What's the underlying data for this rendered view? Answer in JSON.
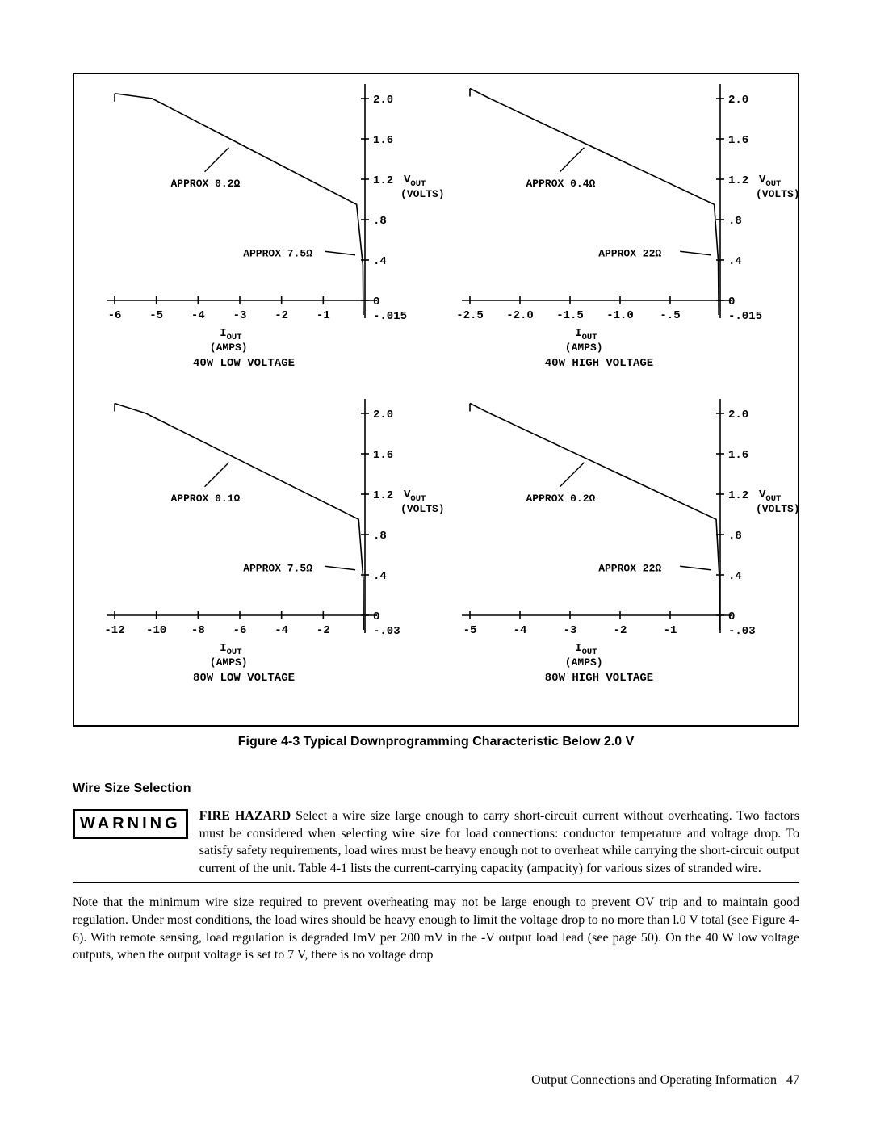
{
  "figure": {
    "caption": "Figure 4-3  Typical Downprogramming Characteristic Below 2.0 V",
    "border_color": "#000000",
    "background": "#ffffff",
    "font_family_plot": "Courier New",
    "font_family_text": "Times New Roman",
    "charts": [
      {
        "id": "c40lv",
        "title": "40W LOW VOLTAGE",
        "x_ticks": [
          "-6",
          "-5",
          "-4",
          "-3",
          "-2",
          "-1"
        ],
        "x_min": -6,
        "x_max": 0,
        "y_ticks": [
          "0",
          ".4",
          ".8",
          "1.2",
          "1.6",
          "2.0"
        ],
        "y_min": -0.015,
        "y_neg_label": "-.015",
        "y_max": 2.0,
        "y_axis_label": "V_OUT",
        "y_axis_unit": "(VOLTS)",
        "x_axis_label": "I_OUT",
        "x_axis_unit": "(AMPS)",
        "annot_upper": "APPROX 0.2",
        "annot_upper_unit": "ohm",
        "annot_lower": "APPROX 7.5",
        "annot_lower_unit": "ohm",
        "curve": [
          [
            -6,
            2.05
          ],
          [
            -5.1,
            2.0
          ],
          [
            -0.2,
            0.95
          ],
          [
            -0.05,
            0.35
          ],
          [
            -0.04,
            -0.015
          ]
        ],
        "line_width": 1.6,
        "color": "#000000"
      },
      {
        "id": "c40hv",
        "title": "40W HIGH VOLTAGE",
        "x_ticks": [
          "-2.5",
          "-2.0",
          "-1.5",
          "-1.0",
          "-.5"
        ],
        "x_min": -2.5,
        "x_max": 0,
        "y_ticks": [
          "0",
          ".4",
          ".8",
          "1.2",
          "1.6",
          "2.0"
        ],
        "y_min": -0.015,
        "y_neg_label": "-.015",
        "y_max": 2.0,
        "y_axis_label": "V_OUT",
        "y_axis_unit": "(VOLTS)",
        "x_axis_label": "I_OUT",
        "x_axis_unit": "(AMPS)",
        "annot_upper": "APPROX 0.4",
        "annot_upper_unit": "ohm",
        "annot_lower": "APPROX 22",
        "annot_lower_unit": "ohm",
        "curve": [
          [
            -2.5,
            2.1
          ],
          [
            -2.3,
            2.0
          ],
          [
            -0.06,
            0.95
          ],
          [
            -0.02,
            0.4
          ],
          [
            -0.015,
            -0.015
          ]
        ],
        "line_width": 1.6,
        "color": "#000000"
      },
      {
        "id": "c80lv",
        "title": "80W LOW VOLTAGE",
        "x_ticks": [
          "-12",
          "-10",
          "-8",
          "-6",
          "-4",
          "-2"
        ],
        "x_min": -12,
        "x_max": 0,
        "y_ticks": [
          "0",
          ".4",
          ".8",
          "1.2",
          "1.6",
          "2.0"
        ],
        "y_min": -0.03,
        "y_neg_label": "-.03",
        "y_max": 2.0,
        "y_axis_label": "V_OUT",
        "y_axis_unit": "(VOLTS)",
        "x_axis_label": "I_OUT",
        "x_axis_unit": "(AMPS)",
        "annot_upper": "APPROX 0.1",
        "annot_upper_unit": "ohm",
        "annot_lower": "APPROX 7.5",
        "annot_lower_unit": "ohm",
        "curve": [
          [
            -12,
            2.1
          ],
          [
            -10.5,
            2.0
          ],
          [
            -0.3,
            0.95
          ],
          [
            -0.08,
            0.35
          ],
          [
            -0.07,
            -0.03
          ]
        ],
        "line_width": 1.6,
        "color": "#000000"
      },
      {
        "id": "c80hv",
        "title": "80W HIGH VOLTAGE",
        "x_ticks": [
          "-5",
          "-4",
          "-3",
          "-2",
          "-1"
        ],
        "x_min": -5,
        "x_max": 0,
        "y_ticks": [
          "0",
          ".4",
          ".8",
          "1.2",
          "1.6",
          "2.0"
        ],
        "y_min": -0.03,
        "y_neg_label": "-.03",
        "y_max": 2.0,
        "y_axis_label": "V_OUT",
        "y_axis_unit": "(VOLTS)",
        "x_axis_label": "I_OUT",
        "x_axis_unit": "(AMPS)",
        "annot_upper": "APPROX 0.2",
        "annot_upper_unit": "ohm",
        "annot_lower": "APPROX 22",
        "annot_lower_unit": "ohm",
        "curve": [
          [
            -5,
            2.1
          ],
          [
            -4.6,
            2.0
          ],
          [
            -0.08,
            0.95
          ],
          [
            -0.02,
            0.4
          ],
          [
            -0.018,
            -0.03
          ]
        ],
        "line_width": 1.6,
        "color": "#000000"
      }
    ]
  },
  "section_heading": "Wire Size Selection",
  "warning": {
    "badge": "WARNING",
    "lead": "FIRE HAZARD",
    "text": " Select a wire size large enough to carry short-circuit current without overheating. Two factors must be considered when selecting wire size for load connections: conductor temperature and voltage drop. To satisfy safety requirements, load wires must be heavy enough not to overheat while carrying the short-circuit output current of the unit. Table 4-1 lists the current-carrying capacity (ampacity) for various sizes of stranded wire."
  },
  "paragraph": "Note that the minimum wire size required to prevent overheating may not be large enough to prevent OV trip and to maintain good regulation. Under most conditions, the load wires should be heavy enough to limit the voltage drop to no more than l.0 V total (see Figure 4-6). With remote sensing, load regulation is degraded ImV per 200 mV in the -V output load lead (see page 50). On the 40 W low voltage outputs, when the output voltage is set to 7 V, there is no voltage drop",
  "footer": {
    "section": "Output Connections and Operating Information",
    "page": "47"
  }
}
